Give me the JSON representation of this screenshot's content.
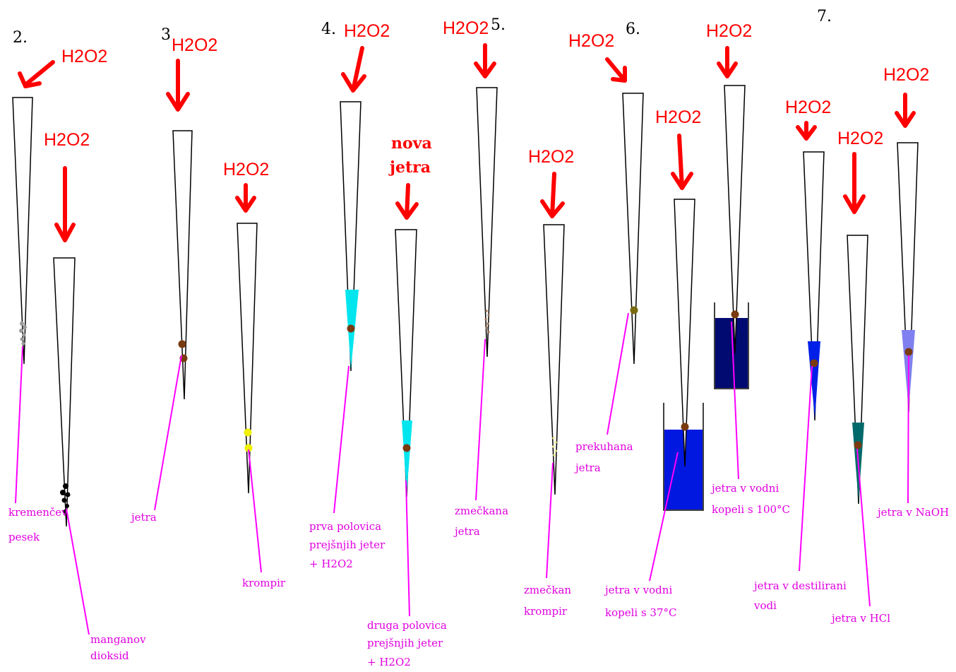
{
  "section_numbers": [
    "2.",
    "3",
    "4.",
    "5.",
    "6.",
    "7."
  ],
  "reagent": "H2O2",
  "new_liver_label": [
    "nova",
    "jetra"
  ],
  "labels": {
    "sand": [
      "kremenčev",
      "pesek"
    ],
    "manganese": [
      "manganov",
      "dioksid"
    ],
    "liver": [
      "jetra"
    ],
    "potato": [
      "krompir"
    ],
    "first_half": [
      "prva polovica",
      "prejšnjih jeter",
      "+ H2O2"
    ],
    "second_half": [
      "druga polovica",
      "prejšnjih jeter",
      "+ H2O2"
    ],
    "crushed_liver": [
      "zmečkana",
      "jetra"
    ],
    "crushed_potato": [
      "zmečkan",
      "krompir"
    ],
    "boiled_liver": [
      "prekuhana",
      "jetra"
    ],
    "bath_37": [
      "jetra v vodni",
      "kopeli s 37°C"
    ],
    "bath_100": [
      "jetra v vodni",
      "kopeli s 100°C"
    ],
    "distilled": [
      "jetra v destilirani",
      "vodi"
    ],
    "hcl": [
      "jetra v HCl"
    ],
    "naoh": [
      "jetra v NaOH"
    ]
  },
  "colors": {
    "arrow": "#ff0000",
    "label": "#e000e0",
    "leader": "#ff00ff",
    "cyan_liquid": "#00e5ee",
    "bath_blue": "#0018e0",
    "bath_navy": "#000a70",
    "distilled_blue": "#0020e8",
    "hcl_teal": "#006a6a",
    "naoh_lavender": "#8080f0",
    "liver_brown": "#7a3a10",
    "potato_yellow": "#f0f000"
  }
}
